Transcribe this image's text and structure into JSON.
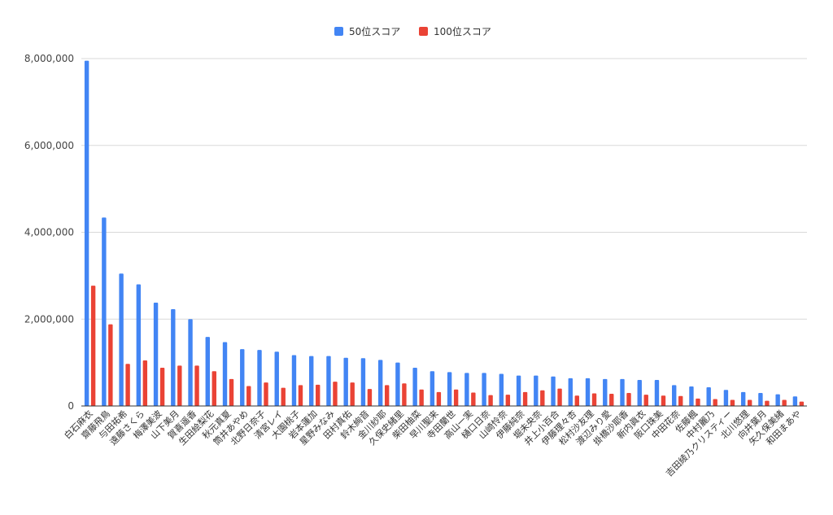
{
  "chart_data": {
    "type": "bar",
    "title": "",
    "xlabel": "",
    "ylabel": "",
    "ylim": [
      0,
      8000000
    ],
    "yticks": [
      0,
      2000000,
      4000000,
      6000000,
      8000000
    ],
    "ytick_labels": [
      "0",
      "2,000,000",
      "4,000,000",
      "6,000,000",
      "8,000,000"
    ],
    "grid": true,
    "legend_position": "top-center",
    "categories": [
      "白石麻衣",
      "齋藤飛鳥",
      "与田祐希",
      "遠藤さくら",
      "梅澤美波",
      "山下美月",
      "賀喜遥香",
      "生田絵梨花",
      "秋元真夏",
      "筒井あやめ",
      "北野日奈子",
      "清宮レイ",
      "大園桃子",
      "岩本蓮加",
      "星野みなみ",
      "田村真佑",
      "鈴木絢音",
      "金川紗耶",
      "久保史緒里",
      "柴田柚菜",
      "早川聖来",
      "寺田蘭世",
      "高山一実",
      "樋口日奈",
      "山崎怜奈",
      "伊藤純奈",
      "堀未央奈",
      "井上小百合",
      "伊藤理々杏",
      "松村沙友理",
      "渡辺みり愛",
      "掛橋沙耶香",
      "新内眞衣",
      "阪口珠美",
      "中田花奈",
      "佐藤楓",
      "中村麗乃",
      "吉田綾乃クリスティー",
      "北川悠理",
      "向井葉月",
      "矢久保美緒",
      "和田まあや"
    ],
    "series": [
      {
        "name": "50位スコア",
        "color": "#4285f4",
        "values": [
          7950000,
          4340000,
          3050000,
          2800000,
          2380000,
          2230000,
          2000000,
          1590000,
          1470000,
          1310000,
          1290000,
          1250000,
          1170000,
          1150000,
          1150000,
          1110000,
          1100000,
          1060000,
          1000000,
          880000,
          800000,
          780000,
          760000,
          760000,
          740000,
          700000,
          700000,
          680000,
          640000,
          640000,
          620000,
          620000,
          600000,
          600000,
          480000,
          450000,
          430000,
          370000,
          320000,
          300000,
          270000,
          220000
        ]
      },
      {
        "name": "100位スコア",
        "color": "#ea4335",
        "values": [
          2770000,
          1880000,
          970000,
          1050000,
          880000,
          930000,
          930000,
          800000,
          620000,
          460000,
          540000,
          420000,
          480000,
          490000,
          560000,
          540000,
          390000,
          480000,
          520000,
          380000,
          320000,
          380000,
          310000,
          250000,
          260000,
          320000,
          360000,
          400000,
          240000,
          290000,
          280000,
          300000,
          260000,
          240000,
          230000,
          170000,
          160000,
          140000,
          140000,
          120000,
          140000,
          100000
        ]
      }
    ]
  }
}
